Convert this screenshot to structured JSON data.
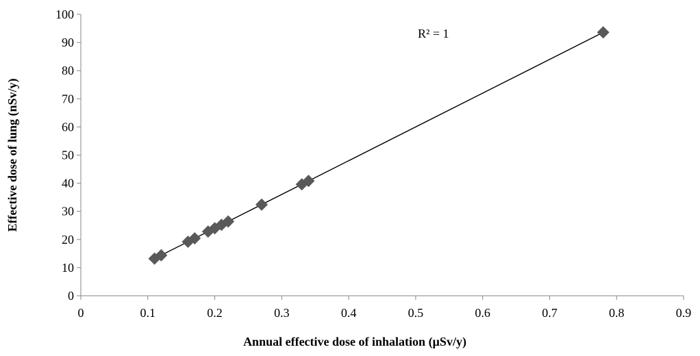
{
  "chart_data": {
    "type": "scatter",
    "title": "",
    "xlabel": "Annual effective dose of inhalation (µSv/y)",
    "ylabel": "Effective dose of lung (nSv/y)",
    "xlim": [
      0,
      0.9
    ],
    "ylim": [
      0,
      100
    ],
    "x_ticks": [
      0,
      0.1,
      0.2,
      0.3,
      0.4,
      0.5,
      0.6,
      0.7,
      0.8,
      0.9
    ],
    "x_tick_labels": [
      "0",
      "0.1",
      "0.2",
      "0.3",
      "0.4",
      "0.5",
      "0.6",
      "0.7",
      "0.8",
      "0.9"
    ],
    "y_ticks": [
      0,
      10,
      20,
      30,
      40,
      50,
      60,
      70,
      80,
      90,
      100
    ],
    "y_tick_labels": [
      "0",
      "10",
      "20",
      "30",
      "40",
      "50",
      "60",
      "70",
      "80",
      "90",
      "100"
    ],
    "grid": false,
    "legend": "none",
    "marker": "diamond",
    "marker_color": "#595959",
    "trendline": {
      "type": "linear",
      "x_range": [
        0.11,
        0.78
      ],
      "color": "#000000"
    },
    "annotation": "R² = 1",
    "points": [
      {
        "x": 0.11,
        "y": 13.2
      },
      {
        "x": 0.12,
        "y": 14.4
      },
      {
        "x": 0.16,
        "y": 19.2
      },
      {
        "x": 0.17,
        "y": 20.4
      },
      {
        "x": 0.19,
        "y": 22.8
      },
      {
        "x": 0.2,
        "y": 24.0
      },
      {
        "x": 0.21,
        "y": 25.2
      },
      {
        "x": 0.22,
        "y": 26.4
      },
      {
        "x": 0.27,
        "y": 32.4
      },
      {
        "x": 0.33,
        "y": 39.6
      },
      {
        "x": 0.34,
        "y": 40.8
      },
      {
        "x": 0.78,
        "y": 93.6
      }
    ]
  }
}
